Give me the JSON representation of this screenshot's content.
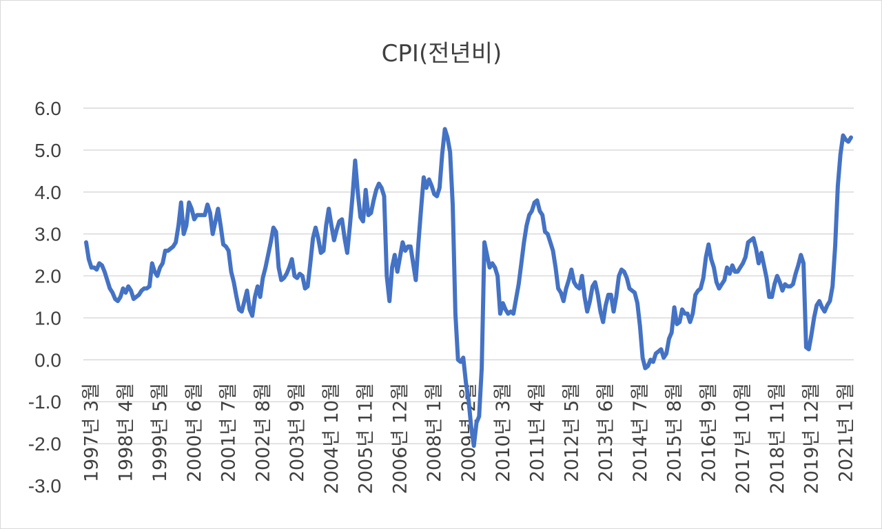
{
  "chart_data": {
    "type": "line",
    "title": "CPI(전년비)",
    "xlabel": "",
    "ylabel": "",
    "ylim": [
      -3.0,
      6.0
    ],
    "yticks": [
      "6.0",
      "5.0",
      "4.0",
      "3.0",
      "2.0",
      "1.0",
      "0.0",
      "-1.0",
      "-2.0",
      "-3.0"
    ],
    "ytick_values": [
      6,
      5,
      4,
      3,
      2,
      1,
      0,
      -1,
      -2,
      -3
    ],
    "grid": true,
    "legend": "none",
    "line_color": "#4472c4",
    "xticks": [
      "1997년 3월",
      "1998년 4월",
      "1999년 5월",
      "2000년 6월",
      "2001년 7월",
      "2002년 8월",
      "2003년 9월",
      "2004년 10월",
      "2005년 11월",
      "2006년 12월",
      "2008년 1월",
      "2009년 2월",
      "2010년 3월",
      "2011년 4월",
      "2012년 5월",
      "2013년 6월",
      "2014년 7월",
      "2015년 8월",
      "2016년 9월",
      "2017년 10월",
      "2018년 11월",
      "2019년 12월",
      "2021년 1월"
    ],
    "start": "1997년 1월",
    "series": [
      {
        "values": [
          2.8,
          2.4,
          2.2,
          2.2,
          2.15,
          2.3,
          2.25,
          2.1,
          1.9,
          1.7,
          1.6,
          1.45,
          1.4,
          1.5,
          1.7,
          1.6,
          1.75,
          1.65,
          1.45,
          1.5,
          1.55,
          1.65,
          1.7,
          1.7,
          1.75,
          2.3,
          2.1,
          2.0,
          2.2,
          2.3,
          2.6,
          2.6,
          2.65,
          2.7,
          2.8,
          3.2,
          3.75,
          3.0,
          3.2,
          3.75,
          3.6,
          3.35,
          3.45,
          3.45,
          3.45,
          3.45,
          3.7,
          3.5,
          3.0,
          3.3,
          3.6,
          3.2,
          2.75,
          2.7,
          2.6,
          2.1,
          1.85,
          1.5,
          1.2,
          1.15,
          1.4,
          1.65,
          1.2,
          1.05,
          1.5,
          1.75,
          1.5,
          1.95,
          2.2,
          2.5,
          2.8,
          3.15,
          3.05,
          2.2,
          1.9,
          1.95,
          2.05,
          2.2,
          2.4,
          2.0,
          1.95,
          2.05,
          2.0,
          1.7,
          1.75,
          2.3,
          2.9,
          3.15,
          2.9,
          2.55,
          2.6,
          3.2,
          3.6,
          3.2,
          2.85,
          3.1,
          3.3,
          3.35,
          2.9,
          2.55,
          3.2,
          3.9,
          4.75,
          4.0,
          3.4,
          3.3,
          4.05,
          3.45,
          3.5,
          3.8,
          4.05,
          4.2,
          4.1,
          3.9,
          2.0,
          1.4,
          2.2,
          2.5,
          2.1,
          2.45,
          2.8,
          2.6,
          2.7,
          2.7,
          2.3,
          1.9,
          2.8,
          3.6,
          4.35,
          4.1,
          4.3,
          4.15,
          3.95,
          3.9,
          4.1,
          4.9,
          5.5,
          5.3,
          4.95,
          3.7,
          1.1,
          0.0,
          -0.05,
          0.05,
          -0.55,
          -0.95,
          -1.6,
          -2.05,
          -1.5,
          -1.35,
          -0.2,
          2.8,
          2.5,
          2.2,
          2.3,
          2.2,
          2.0,
          1.1,
          1.35,
          1.2,
          1.1,
          1.15,
          1.1,
          1.45,
          1.8,
          2.3,
          2.8,
          3.2,
          3.45,
          3.55,
          3.75,
          3.8,
          3.55,
          3.45,
          3.05,
          3.0,
          2.8,
          2.6,
          2.2,
          1.7,
          1.6,
          1.4,
          1.7,
          1.9,
          2.15,
          1.85,
          1.75,
          1.7,
          2.0,
          1.5,
          1.15,
          1.4,
          1.75,
          1.85,
          1.55,
          1.15,
          0.9,
          1.3,
          1.55,
          1.55,
          1.15,
          1.5,
          2.0,
          2.15,
          2.1,
          1.95,
          1.7,
          1.65,
          1.6,
          1.35,
          0.8,
          0.05,
          -0.2,
          -0.15,
          0.0,
          -0.05,
          0.15,
          0.2,
          0.25,
          0.05,
          0.15,
          0.5,
          0.65,
          1.25,
          0.85,
          0.9,
          1.2,
          1.1,
          1.1,
          0.9,
          1.1,
          1.55,
          1.65,
          1.7,
          1.95,
          2.45,
          2.75,
          2.4,
          2.2,
          1.85,
          1.7,
          1.8,
          1.9,
          2.2,
          2.05,
          2.25,
          2.1,
          2.1,
          2.2,
          2.3,
          2.45,
          2.8,
          2.85,
          2.9,
          2.65,
          2.3,
          2.55,
          2.25,
          1.95,
          1.5,
          1.5,
          1.8,
          2.0,
          1.85,
          1.65,
          1.8,
          1.75,
          1.75,
          1.8,
          2.05,
          2.25,
          2.5,
          2.3,
          0.3,
          0.25,
          0.6,
          1.0,
          1.3,
          1.4,
          1.25,
          1.15,
          1.3,
          1.4,
          1.75,
          2.7,
          4.15,
          4.9,
          5.35,
          5.25,
          5.2,
          5.3
        ]
      }
    ]
  }
}
